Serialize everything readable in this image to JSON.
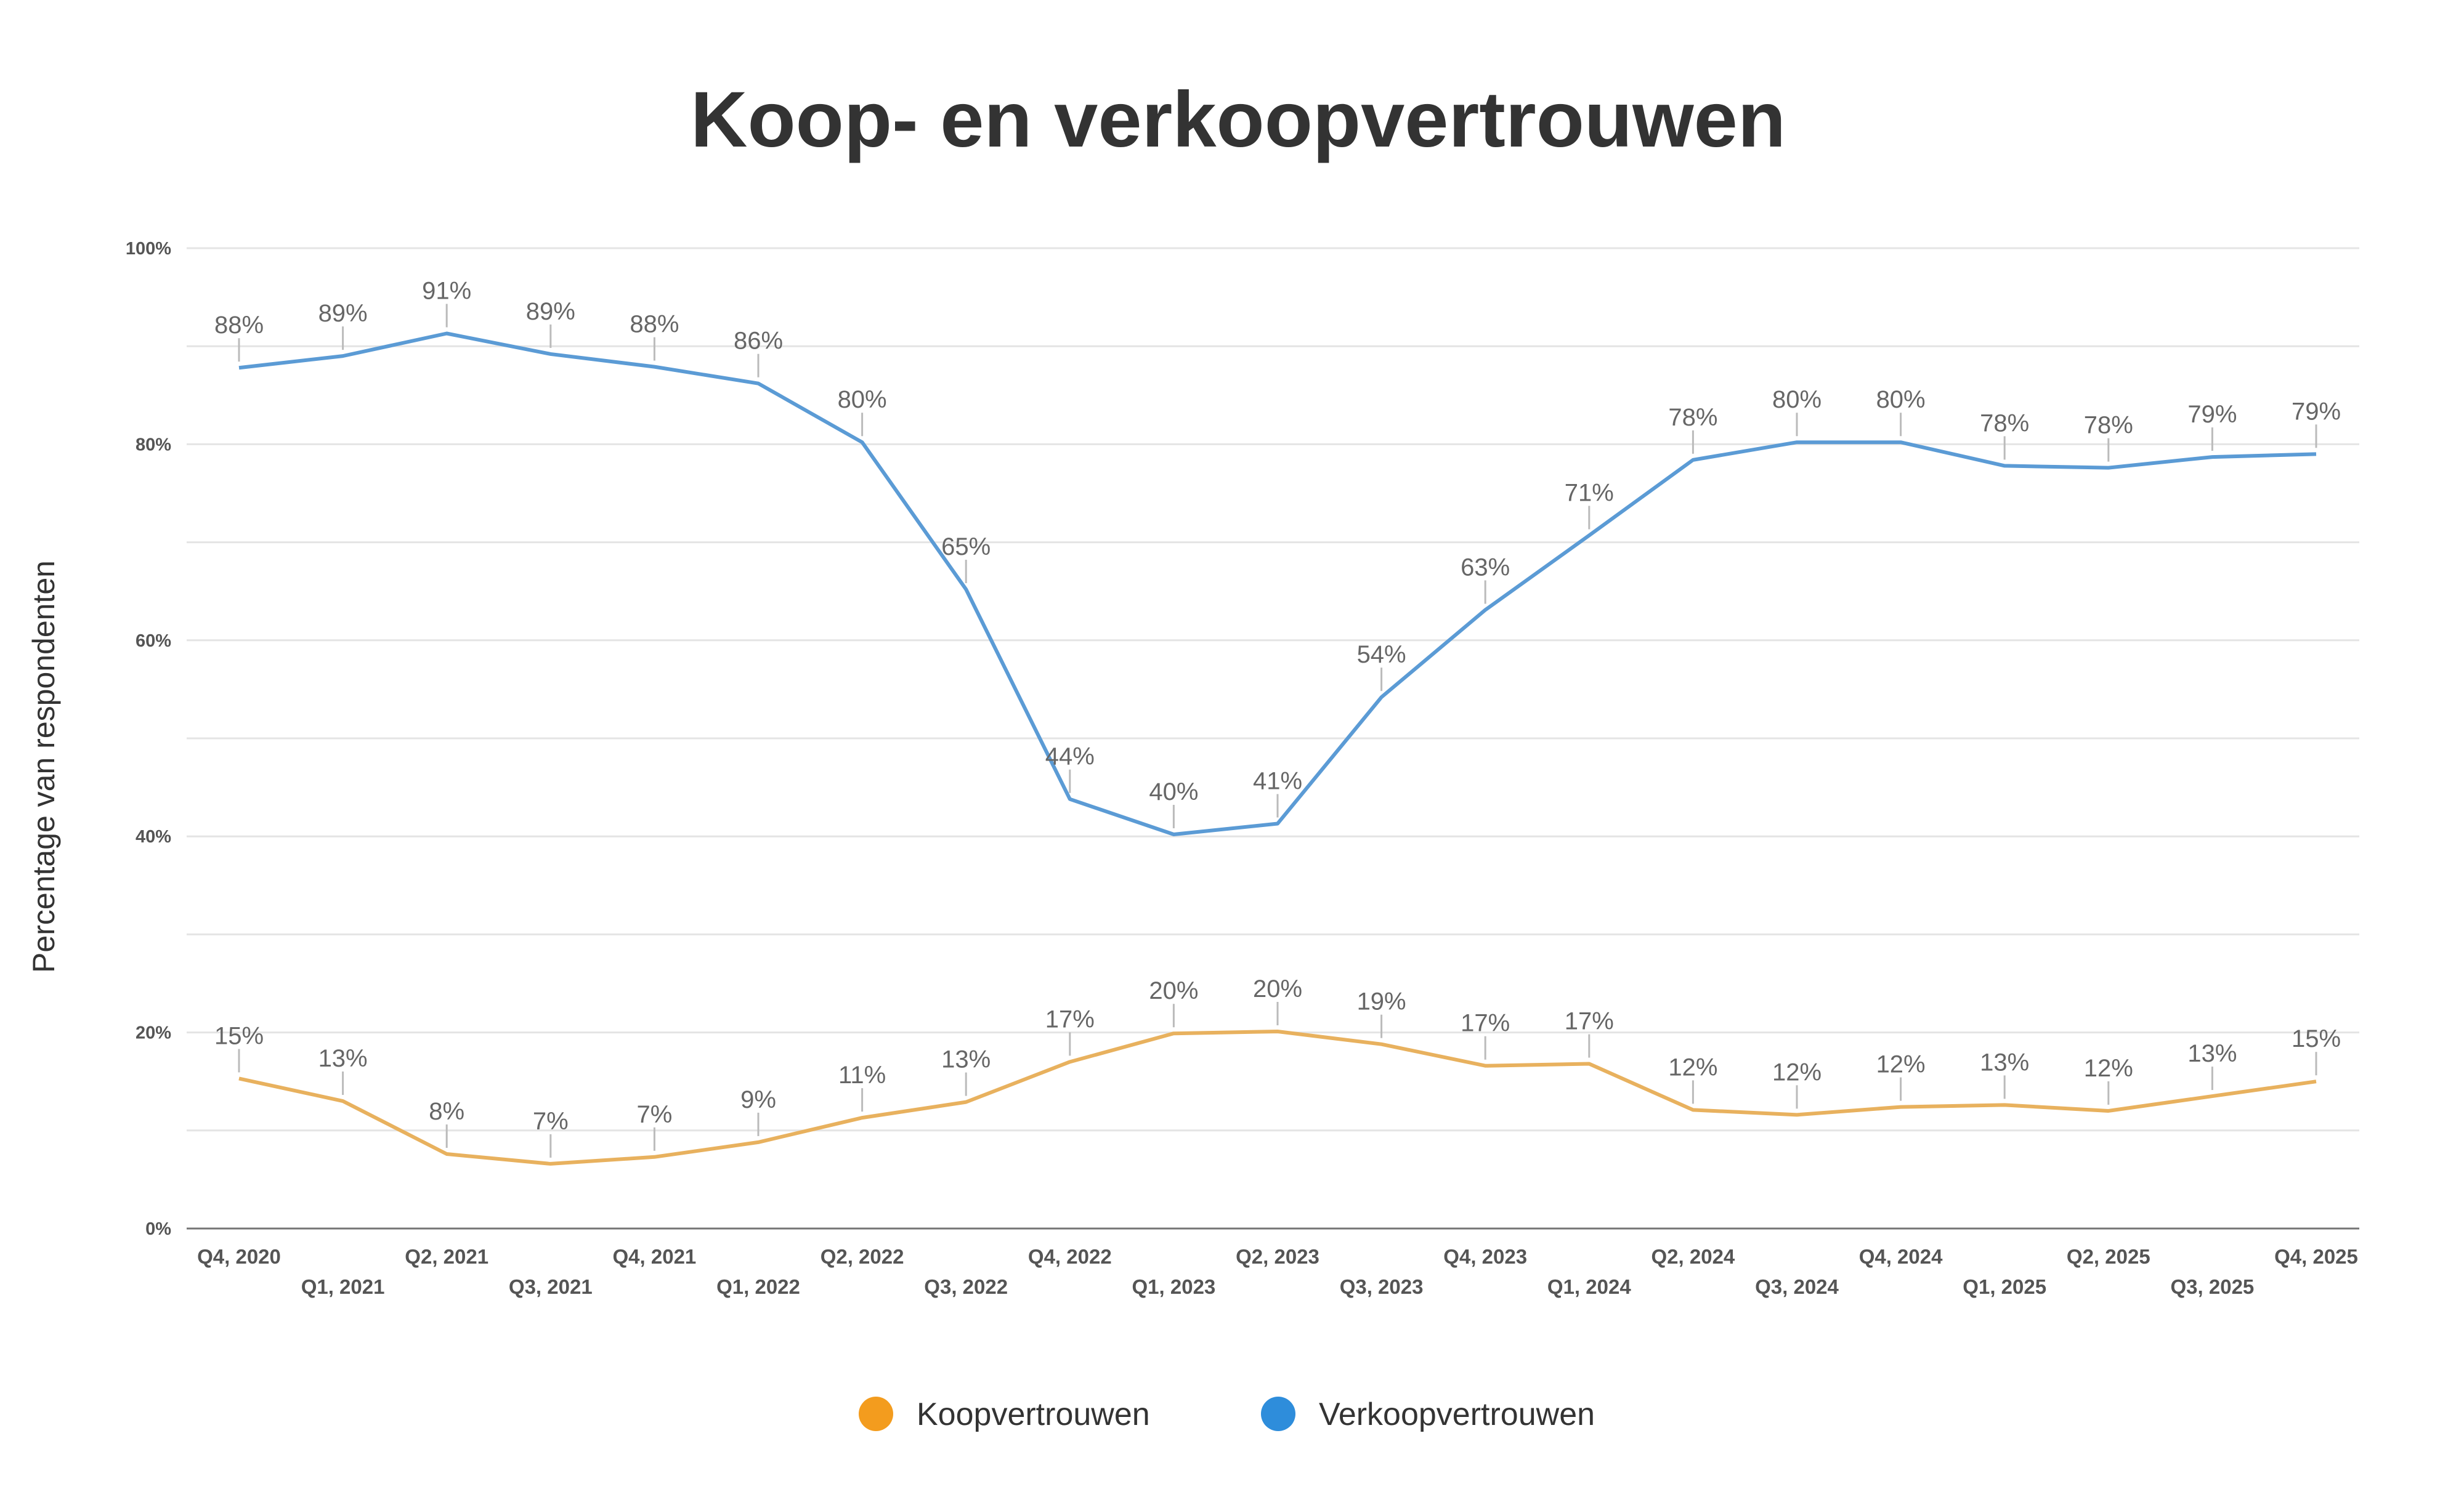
{
  "chart_data": {
    "type": "line",
    "title": "Koop- en verkoopvertrouwen",
    "xlabel": "",
    "ylabel": "Percentage van respondenten",
    "ylim": [
      0,
      100
    ],
    "yticks": [
      "0%",
      "20%",
      "40%",
      "60%",
      "80%",
      "100%"
    ],
    "grid": true,
    "legend_position": "bottom",
    "categories": [
      "Q4, 2020",
      "Q1, 2021",
      "Q2, 2021",
      "Q3, 2021",
      "Q4, 2021",
      "Q1, 2022",
      "Q2, 2022",
      "Q3, 2022",
      "Q4, 2022",
      "Q1, 2023",
      "Q2, 2023",
      "Q3, 2023",
      "Q4, 2023",
      "Q1, 2024",
      "Q2, 2024",
      "Q3, 2024",
      "Q4, 2024",
      "Q1, 2025",
      "Q2, 2025",
      "Q3, 2025",
      "Q4, 2025"
    ],
    "series": [
      {
        "name": "Koopvertrouwen",
        "color": "#F39C1E",
        "line_color": "#E8B15E",
        "values": [
          15.3,
          13,
          7.6,
          6.6,
          7.3,
          8.8,
          11.3,
          12.9,
          17,
          19.9,
          20.1,
          18.8,
          16.6,
          16.8,
          12.1,
          11.6,
          12.4,
          12.6,
          12,
          13.5,
          15
        ],
        "labels": [
          "15%",
          "13%",
          "8%",
          "7%",
          "7%",
          "9%",
          "11%",
          "13%",
          "17%",
          "20%",
          "20%",
          "19%",
          "17%",
          "17%",
          "12%",
          "12%",
          "12%",
          "13%",
          "12%",
          "13%",
          "15%"
        ]
      },
      {
        "name": "Verkoopvertrouwen",
        "color": "#2E8DDB",
        "line_color": "#5B9BD5",
        "values": [
          87.8,
          89,
          91.3,
          89.2,
          87.9,
          86.2,
          80.2,
          65.2,
          43.8,
          40.2,
          41.3,
          54.2,
          63.1,
          70.7,
          78.4,
          80.2,
          80.2,
          77.8,
          77.6,
          78.7,
          79
        ],
        "labels": [
          "88%",
          "89%",
          "91%",
          "89%",
          "88%",
          "86%",
          "80%",
          "65%",
          "44%",
          "40%",
          "41%",
          "54%",
          "63%",
          "71%",
          "78%",
          "80%",
          "80%",
          "78%",
          "78%",
          "79%",
          "79%"
        ]
      }
    ]
  }
}
